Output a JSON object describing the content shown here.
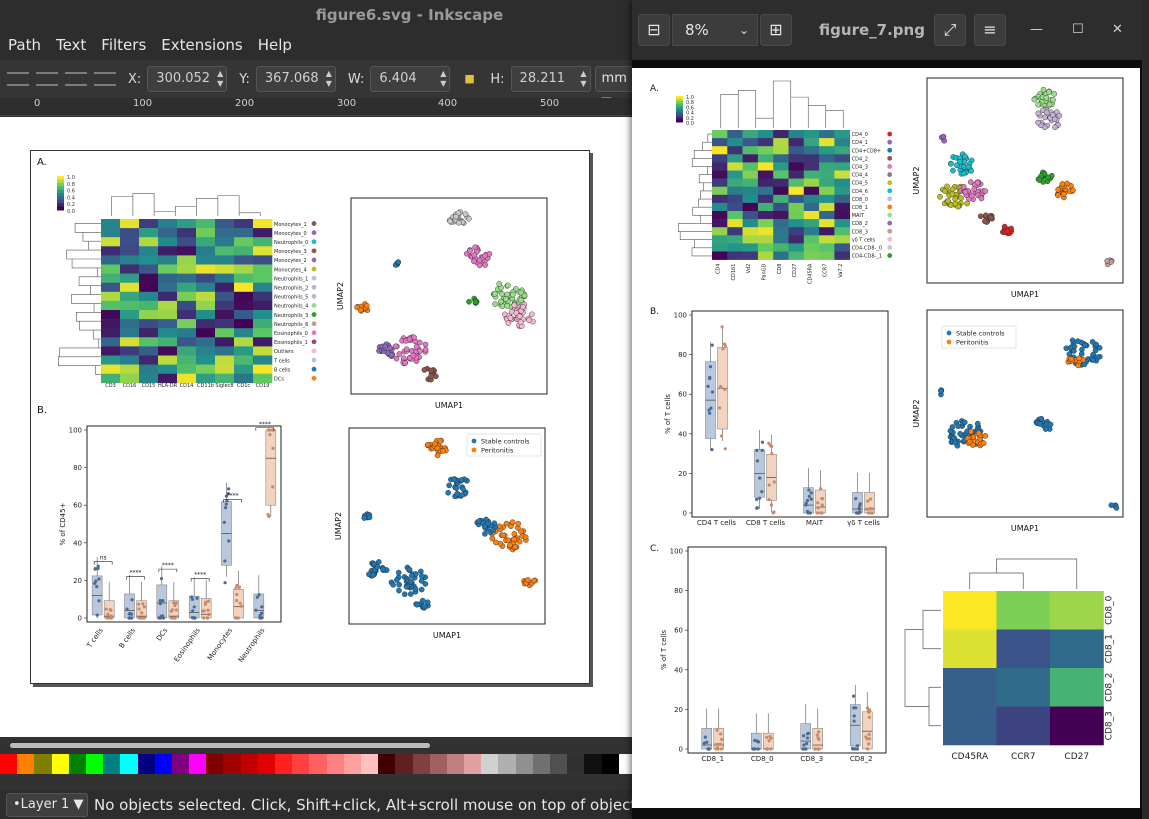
{
  "inkscape": {
    "window_title": "figure6.svg - Inkscape",
    "menu": [
      "Path",
      "Text",
      "Filters",
      "Extensions",
      "Help"
    ],
    "toolbar": {
      "x_label": "X:",
      "x_value": "300.052",
      "y_label": "Y:",
      "y_value": "367.068",
      "w_label": "W:",
      "w_value": "6.404",
      "h_label": "H:",
      "h_value": "28.211",
      "unit": "mm"
    },
    "ruler_ticks": [
      "0",
      "100",
      "200",
      "300",
      "400",
      "500"
    ],
    "status": {
      "layer": "•Layer 1",
      "message": "No objects selected. Click, Shift+click, Alt+scroll mouse on top of objects, or dra"
    },
    "palette": [
      "#ff0000",
      "#ff8000",
      "#808000",
      "#ffff00",
      "#008000",
      "#00ff00",
      "#008080",
      "#00ffff",
      "#000080",
      "#0000ff",
      "#800080",
      "#ff00ff",
      "#800000",
      "#a00000",
      "#c00000",
      "#e00000",
      "#ff2020",
      "#ff4040",
      "#ff6060",
      "#ff8080",
      "#ffa0a0",
      "#ffc0c0",
      "#400000",
      "#602020",
      "#804040",
      "#a06060",
      "#c08080",
      "#e0a0a0",
      "#d0d0d0",
      "#b0b0b0",
      "#909090",
      "#707070",
      "#505050",
      "#303030",
      "#101010",
      "#000000",
      "#ffffff"
    ],
    "figure6": {
      "panel_a_label": "A.",
      "panel_b_label": "B.",
      "colorbar_ticks": [
        "1.0",
        "0.8",
        "0.6",
        "0.4",
        "0.2",
        "0.0"
      ],
      "heatmap_rows": [
        "Monocytes_1",
        "Monocytes_0",
        "Neutrophils_0",
        "Monocytes_3",
        "Monocytes_2",
        "Monocytes_4",
        "Neutrophils_1",
        "Neutrophils_2",
        "Neutrophils_5",
        "Neutrophils_4",
        "Neutrophils_3",
        "Neutrophils_6",
        "Eosinophils_0",
        "Eosinophils_1",
        "Outliers",
        "T cells",
        "B cells",
        "DCs"
      ],
      "heatmap_row_colors": [
        "#8c564b",
        "#9467bd",
        "#17becf",
        "#8c564b",
        "#9467bd",
        "#bcbd22",
        "#aec7e8",
        "#c5b0d5",
        "#c5b0d5",
        "#98df8a",
        "#2ca02c",
        "#c49c94",
        "#e377c2",
        "#8c564b",
        "#f7b6d2",
        "#aec7e8",
        "#1f77b4",
        "#ff7f0e"
      ],
      "heatmap_cols": [
        "CD3",
        "CD16",
        "CD15",
        "HLA-DR",
        "CD14",
        "CD11b",
        "Siglec8",
        "CD1c",
        "CD19"
      ],
      "umap_xlabel": "UMAP1",
      "umap_ylabel": "UMAP2",
      "legend": [
        "Stable controls",
        "Peritonitis"
      ],
      "box_ylabel": "% of CD45+",
      "box_yticks": [
        "0",
        "20",
        "40",
        "60",
        "80",
        "100"
      ],
      "box_categories": [
        "T cells",
        "B cells",
        "DCs",
        "Eosinophils",
        "Monocytes",
        "Neutrophils"
      ],
      "box_sig": [
        "ns",
        "****",
        "****",
        "****",
        "****",
        "****"
      ]
    }
  },
  "viewer": {
    "zoom": "8%",
    "title": "figure_7.png",
    "figure7": {
      "panel_a_label": "A.",
      "panel_b_label": "B.",
      "panel_c_label": "C.",
      "colorbar_ticks": [
        "1.0",
        "0.8",
        "0.6",
        "0.4",
        "0.2",
        "0.0"
      ],
      "heatmap_rows": [
        "CD4_0",
        "CD4_1",
        "CD4+CD8+",
        "CD4_2",
        "CD4_3",
        "CD4_4",
        "CD4_5",
        "CD4_6",
        "CD8_0",
        "CD8_1",
        "MAIT",
        "CD8_2",
        "CD8_3",
        "γδ T cells",
        "CD4-CD8-_0",
        "CD4-CD8-_1"
      ],
      "heatmap_row_colors": [
        "#d62728",
        "#9467bd",
        "#1f77b4",
        "#8c564b",
        "#e377c2",
        "#7f7f7f",
        "#bcbd22",
        "#17becf",
        "#aec7e8",
        "#ff7f0e",
        "#98df8a",
        "#9467bd",
        "#c49c94",
        "#f7b6d2",
        "#c7c7c7",
        "#2ca02c"
      ],
      "heatmap_cols": [
        "CD4",
        "CD161",
        "Vd2",
        "PanGD",
        "CD8",
        "CD27",
        "CD45RA",
        "CCR7",
        "Va7.2"
      ],
      "umap_xlabel": "UMAP1",
      "umap_ylabel": "UMAP2",
      "legend": [
        "Stable controls",
        "Peritonitis"
      ],
      "box_b_ylabel": "% of T cells",
      "box_b_yticks": [
        "0",
        "20",
        "40",
        "60",
        "80",
        "100"
      ],
      "box_b_categories": [
        "CD4 T cells",
        "CD8 T cells",
        "MAIT",
        "γδ T cells"
      ],
      "box_c_ylabel": "% of T cells",
      "box_c_yticks": [
        "0",
        "20",
        "40",
        "60",
        "80",
        "100"
      ],
      "box_c_categories": [
        "CD8_1",
        "CD8_0",
        "CD8_3",
        "CD8_2"
      ],
      "small_heatmap_rows": [
        "CD8_0",
        "CD8_1",
        "CD8_2",
        "CD8_3"
      ],
      "small_heatmap_cols": [
        "CD45RA",
        "CCR7",
        "CD27"
      ]
    }
  },
  "chart_data": [
    {
      "type": "heatmap",
      "title": "",
      "rows": [
        "CD8_0",
        "CD8_1",
        "CD8_2",
        "CD8_3"
      ],
      "cols": [
        "CD45RA",
        "CCR7",
        "CD27"
      ],
      "values": [
        [
          1.0,
          0.8,
          0.85
        ],
        [
          0.95,
          0.25,
          0.35
        ],
        [
          0.3,
          0.35,
          0.65
        ],
        [
          0.3,
          0.2,
          0.0
        ]
      ]
    },
    {
      "type": "bar",
      "title": "",
      "ylabel": "% of T cells",
      "categories": [
        "CD4 T cells",
        "CD8 T cells",
        "MAIT",
        "γδ T cells"
      ],
      "series": [
        {
          "name": "Stable controls",
          "values": [
            57,
            20,
            4,
            2
          ]
        },
        {
          "name": "Peritonitis",
          "values": [
            63,
            18,
            3,
            2
          ]
        }
      ],
      "ylim": [
        0,
        100
      ]
    },
    {
      "type": "bar",
      "title": "",
      "ylabel": "% of T cells",
      "categories": [
        "CD8_1",
        "CD8_0",
        "CD8_3",
        "CD8_2"
      ],
      "series": [
        {
          "name": "Stable controls",
          "values": [
            2,
            0,
            4,
            12
          ]
        },
        {
          "name": "Peritonitis",
          "values": [
            2,
            0,
            2,
            9
          ]
        }
      ],
      "ylim": [
        0,
        100
      ]
    },
    {
      "type": "bar",
      "title": "",
      "ylabel": "% of CD45+",
      "categories": [
        "T cells",
        "B cells",
        "DCs",
        "Eosinophils",
        "Monocytes",
        "Neutrophils"
      ],
      "series": [
        {
          "name": "Stable controls",
          "values": [
            12,
            4,
            8,
            3,
            45,
            4
          ]
        },
        {
          "name": "Peritonitis",
          "values": [
            1,
            1,
            1,
            2,
            6,
            85
          ]
        }
      ],
      "ylim": [
        0,
        100
      ]
    }
  ]
}
